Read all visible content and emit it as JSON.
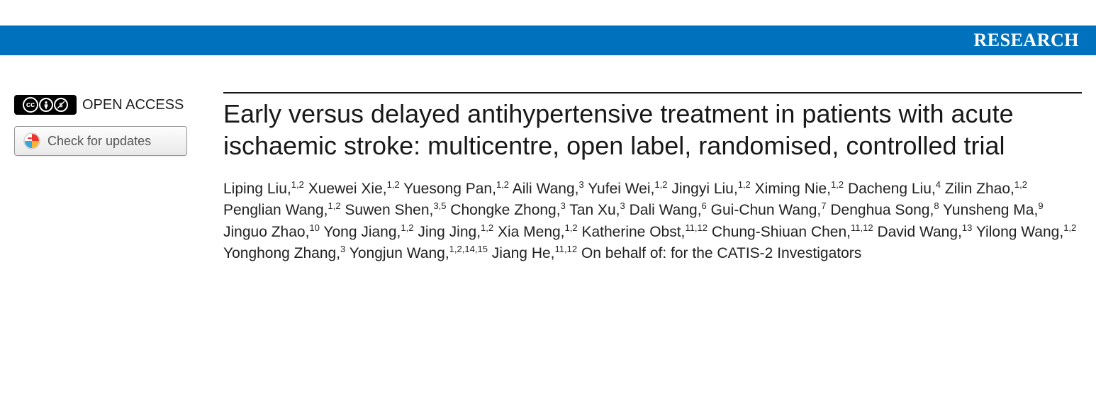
{
  "banner": {
    "label": "RESEARCH",
    "background_color": "#0071bc",
    "text_color": "#ffffff"
  },
  "left": {
    "open_access_label": "OPEN ACCESS",
    "cc_main": "cc",
    "cc_by": "BY",
    "cc_nc": "NC",
    "check_updates_label": "Check for updates"
  },
  "article": {
    "title": "Early versus delayed antihypertensive treatment in patients with acute ischaemic stroke: multicentre, open label, randomised, controlled trial",
    "on_behalf": "On behalf of: for the CATIS-2 Investigators",
    "authors": [
      {
        "name": "Liping Liu",
        "aff": "1,2"
      },
      {
        "name": "Xuewei Xie",
        "aff": "1,2"
      },
      {
        "name": "Yuesong Pan",
        "aff": "1,2"
      },
      {
        "name": "Aili Wang",
        "aff": "3"
      },
      {
        "name": "Yufei Wei",
        "aff": "1,2"
      },
      {
        "name": "Jingyi Liu",
        "aff": "1,2"
      },
      {
        "name": "Ximing Nie",
        "aff": "1,2"
      },
      {
        "name": "Dacheng Liu",
        "aff": "4"
      },
      {
        "name": "Zilin Zhao",
        "aff": "1,2"
      },
      {
        "name": "Penglian Wang",
        "aff": "1,2"
      },
      {
        "name": "Suwen Shen",
        "aff": "3,5"
      },
      {
        "name": "Chongke Zhong",
        "aff": "3"
      },
      {
        "name": "Tan Xu",
        "aff": "3"
      },
      {
        "name": "Dali Wang",
        "aff": "6"
      },
      {
        "name": "Gui-Chun Wang",
        "aff": "7"
      },
      {
        "name": "Denghua Song",
        "aff": "8"
      },
      {
        "name": "Yunsheng Ma",
        "aff": "9"
      },
      {
        "name": "Jinguo Zhao",
        "aff": "10"
      },
      {
        "name": "Yong Jiang",
        "aff": "1,2"
      },
      {
        "name": "Jing Jing",
        "aff": "1,2"
      },
      {
        "name": "Xia Meng",
        "aff": "1,2"
      },
      {
        "name": "Katherine Obst",
        "aff": "11,12"
      },
      {
        "name": "Chung-Shiuan Chen",
        "aff": "11,12"
      },
      {
        "name": "David Wang",
        "aff": "13"
      },
      {
        "name": "Yilong Wang",
        "aff": "1,2"
      },
      {
        "name": "Yonghong Zhang",
        "aff": "3"
      },
      {
        "name": "Yongjun Wang",
        "aff": "1,2,14,15"
      },
      {
        "name": "Jiang He",
        "aff": "11,12"
      }
    ]
  },
  "colors": {
    "rule": "#191919",
    "text": "#222222",
    "button_border": "#979797",
    "button_text": "#555555",
    "crossmark_red": "#e8352e",
    "crossmark_yellow": "#f9b233",
    "crossmark_blue": "#3aa4dc"
  }
}
